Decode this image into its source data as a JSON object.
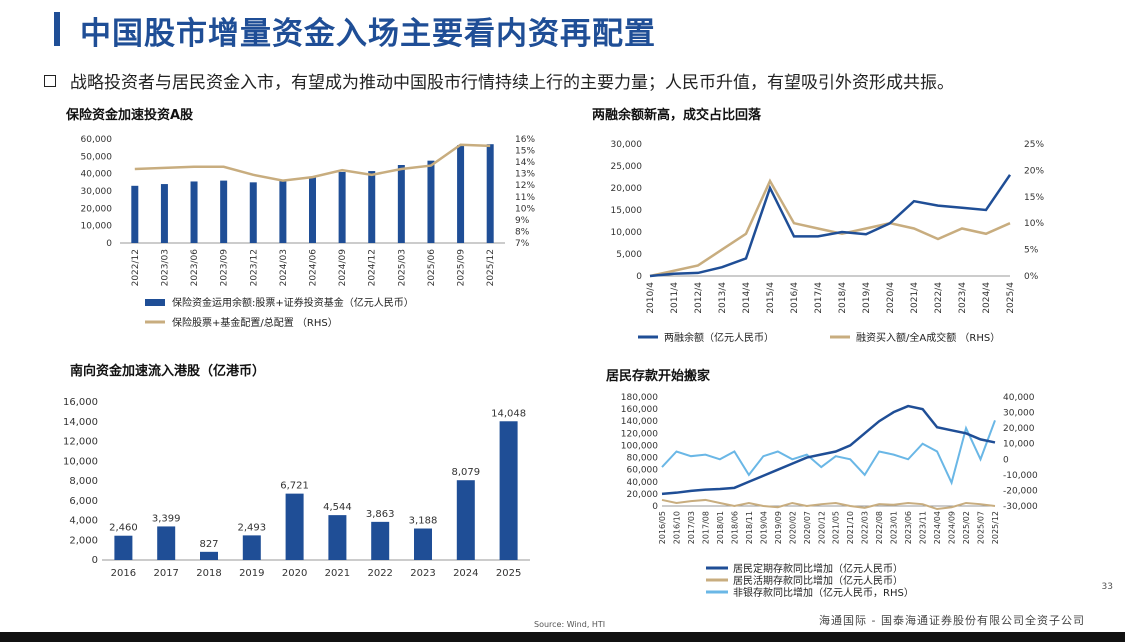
{
  "title": "中国股市增量资金入场主要看内资再配置",
  "bullet": "战略投资者与居民资金入市，有望成为推动中国股市行情持续上行的主要力量；人民币升值，有望吸引外资形成共振。",
  "charts": {
    "insurance": {
      "title": "保险资金加速投资A股",
      "y_left_ticks": [
        "0",
        "10,000",
        "20,000",
        "30,000",
        "40,000",
        "50,000",
        "60,000"
      ],
      "y_right_ticks": [
        "7%",
        "8%",
        "9%",
        "10%",
        "11%",
        "12%",
        "13%",
        "14%",
        "15%",
        "16%"
      ],
      "legend_bar": "保险资金运用余额:股票+证券投资基金（亿元人民币）",
      "legend_line": "保险股票+基金配置/总配置 （RHS）"
    },
    "margin": {
      "title": "两融余额新高，成交占比回落",
      "y_left_ticks": [
        "0",
        "5,000",
        "10,000",
        "15,000",
        "20,000",
        "25,000",
        "30,000"
      ],
      "y_right_ticks": [
        "0%",
        "5%",
        "10%",
        "15%",
        "20%",
        "25%"
      ],
      "legend_1": "两融余额（亿元人民币）",
      "legend_2": "融资买入额/全A成交额 （RHS）"
    },
    "southbound": {
      "title": "南向资金加速流入港股（亿港币）",
      "y_ticks": [
        "0",
        "2,000",
        "4,000",
        "6,000",
        "8,000",
        "10,000",
        "12,000",
        "14,000",
        "16,000"
      ]
    },
    "deposits": {
      "title": "居民存款开始搬家",
      "y_left_ticks": [
        "0",
        "20,000",
        "40,000",
        "60,000",
        "80,000",
        "100,000",
        "120,000",
        "140,000",
        "160,000",
        "180,000"
      ],
      "y_right_ticks": [
        "-30,000",
        "-20,000",
        "-10,000",
        "0",
        "10,000",
        "20,000",
        "30,000",
        "40,000"
      ],
      "legend_1": "居民定期存款同比增加（亿元人民币）",
      "legend_2": "居民活期存款同比增加（亿元人民币）",
      "legend_3": "非银存款同比增加（亿元人民币，RHS）"
    }
  },
  "chart_data": [
    {
      "type": "bar",
      "categories": [
        "2022/12",
        "2023/03",
        "2023/06",
        "2023/09",
        "2023/12",
        "2024/03",
        "2024/06",
        "2024/09",
        "2024/12",
        "2025/03",
        "2025/06",
        "2025/09",
        "2025/12"
      ],
      "series": [
        {
          "name": "保险资金运用余额:股票+证券投资基金（亿元人民币）",
          "values": [
            33000,
            34000,
            35500,
            36000,
            35000,
            36500,
            38000,
            41000,
            41500,
            45000,
            47500,
            56500,
            57000
          ]
        },
        {
          "name": "保险股票+基金配置/总配置 （RHS）",
          "axis": "right",
          "values": [
            13.4,
            13.5,
            13.6,
            13.6,
            12.9,
            12.4,
            12.7,
            13.3,
            12.9,
            13.4,
            13.7,
            15.5,
            15.4
          ]
        }
      ],
      "ylim": [
        0,
        60000
      ],
      "ylim_right": [
        7,
        16
      ]
    },
    {
      "type": "line",
      "x": [
        "2010/4",
        "2011/4",
        "2012/4",
        "2013/4",
        "2014/4",
        "2015/4",
        "2016/4",
        "2017/4",
        "2018/4",
        "2019/4",
        "2020/4",
        "2021/4",
        "2022/4",
        "2023/4",
        "2024/4",
        "2025/4"
      ],
      "series": [
        {
          "name": "两融余额（亿元人民币）",
          "values": [
            0,
            500,
            700,
            2000,
            4000,
            20000,
            9000,
            9000,
            10000,
            9500,
            12000,
            17000,
            16000,
            15500,
            15000,
            23000
          ]
        },
        {
          "name": "融资买入额/全A成交额 （RHS）",
          "axis": "right",
          "values": [
            0,
            1,
            2,
            5,
            8,
            18,
            10,
            9,
            8,
            9,
            10,
            9,
            7,
            9,
            8,
            10
          ]
        }
      ],
      "ylim": [
        0,
        30000
      ],
      "ylim_right": [
        0,
        25
      ]
    },
    {
      "type": "bar",
      "categories": [
        "2016",
        "2017",
        "2018",
        "2019",
        "2020",
        "2021",
        "2022",
        "2023",
        "2024",
        "2025"
      ],
      "values": [
        2460,
        3399,
        827,
        2493,
        6721,
        4544,
        3863,
        3188,
        8079,
        14048
      ],
      "data_labels": [
        "2,460",
        "3,399",
        "827",
        "2,493",
        "6,721",
        "4,544",
        "3,863",
        "3,188",
        "8,079",
        "14,048"
      ],
      "ylim": [
        0,
        16000
      ]
    },
    {
      "type": "line",
      "x": [
        "2016/05",
        "2016/10",
        "2017/03",
        "2017/08",
        "2018/01",
        "2018/06",
        "2018/11",
        "2019/04",
        "2019/09",
        "2020/02",
        "2020/07",
        "2020/12",
        "2021/05",
        "2021/10",
        "2022/03",
        "2022/08",
        "2023/01",
        "2023/06",
        "2023/11",
        "2024/04",
        "2024/09",
        "2025/02",
        "2025/07",
        "2025/12"
      ],
      "series": [
        {
          "name": "居民定期存款同比增加（亿元人民币）",
          "values": [
            20000,
            22000,
            25000,
            27000,
            28000,
            30000,
            40000,
            50000,
            60000,
            70000,
            80000,
            85000,
            90000,
            100000,
            120000,
            140000,
            155000,
            165000,
            160000,
            130000,
            125000,
            120000,
            110000,
            105000
          ]
        },
        {
          "name": "居民活期存款同比增加（亿元人民币）",
          "values": [
            10000,
            5000,
            8000,
            10000,
            5000,
            0,
            5000,
            0,
            -2000,
            5000,
            0,
            3000,
            5000,
            0,
            -3000,
            3000,
            2000,
            5000,
            3000,
            -5000,
            -2000,
            5000,
            3000,
            0
          ]
        },
        {
          "name": "非银存款同比增加（亿元人民币，RHS）",
          "axis": "right",
          "values": [
            -5000,
            5000,
            2000,
            3000,
            0,
            5000,
            -10000,
            2000,
            5000,
            0,
            3000,
            -5000,
            2000,
            0,
            -10000,
            5000,
            3000,
            0,
            10000,
            5000,
            -15000,
            20000,
            0,
            25000
          ]
        }
      ],
      "ylim": [
        0,
        180000
      ],
      "ylim_right": [
        -30000,
        40000
      ]
    }
  ],
  "page_number": "33",
  "source": "Source: Wind, HTI",
  "footer": "海通国际 - 国泰海通证券股份有限公司全资子公司",
  "colors": {
    "navy": "#1f4e96",
    "tan": "#c8ad7f",
    "lightblue": "#6ab7e6"
  }
}
